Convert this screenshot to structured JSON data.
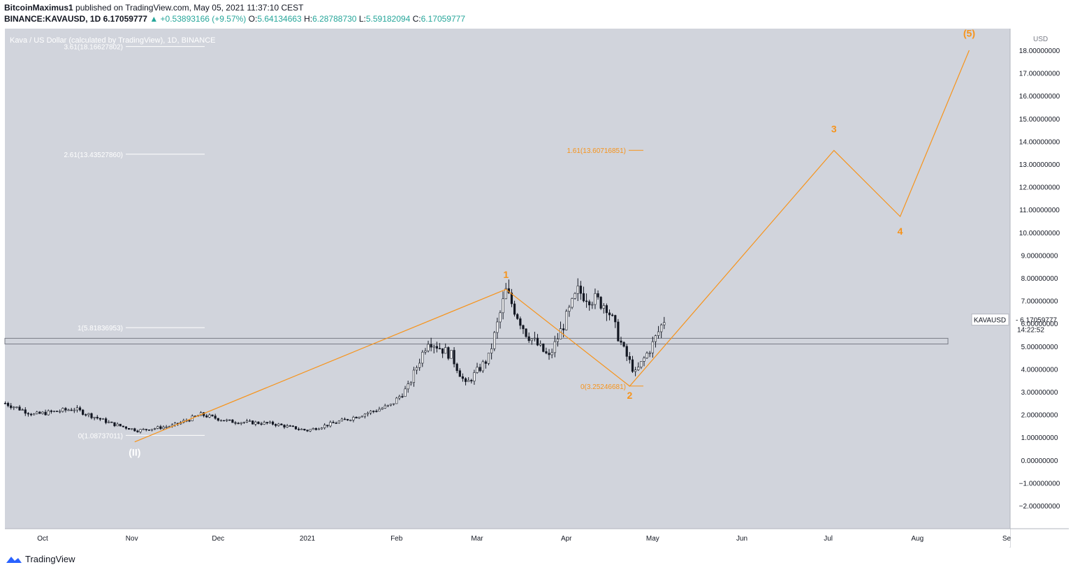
{
  "header": {
    "author": "BitcoinMaximus1",
    "published": "published on TradingView.com, May 05, 2021 11:37:10 CEST",
    "symbol": "BINANCE:KAVAUSD, 1D",
    "last": "6.17059777",
    "change": "▲ +0.53893166 (+9.57%)",
    "open_label": "O:",
    "open": "5.64134663",
    "high_label": "H:",
    "high": "6.28788730",
    "low_label": "L:",
    "low": "5.59182094",
    "close_label": "C:",
    "close": "6.17059777"
  },
  "footer": {
    "brand": "TradingView",
    "icon": "tradingview-logo-icon"
  },
  "colors": {
    "background": "#d1d4dc",
    "candle": "#131722",
    "wave": "#f7931a",
    "fib": "#ffffff"
  },
  "chart_data": {
    "type": "candlestick",
    "title": "Kava / US Dollar (calculated by TradingView), 1D, BINANCE",
    "currency": "USD",
    "ylim": [
      -2.8,
      18.8
    ],
    "y_ticks": [
      "18.00000000",
      "17.00000000",
      "16.00000000",
      "15.00000000",
      "14.00000000",
      "13.00000000",
      "12.00000000",
      "11.00000000",
      "10.00000000",
      "9.00000000",
      "8.00000000",
      "7.00000000",
      "6.00000000",
      "5.00000000",
      "4.00000000",
      "3.00000000",
      "2.00000000",
      "1.00000000",
      "0.00000000",
      "−1.00000000",
      "−2.00000000"
    ],
    "y_tick_values": [
      18,
      17,
      16,
      15,
      14,
      13,
      12,
      11,
      10,
      9,
      8,
      7,
      6,
      5,
      4,
      3,
      2,
      1,
      0,
      -1,
      -2
    ],
    "x_ticks": [
      "Oct",
      "Nov",
      "Dec",
      "2021",
      "Feb",
      "Mar",
      "Apr",
      "May",
      "Jun",
      "Jul",
      "Aug",
      "Se"
    ],
    "x_tick_dates": [
      "2020-10-01",
      "2020-11-01",
      "2020-12-01",
      "2021-01-01",
      "2021-02-01",
      "2021-03-01",
      "2021-04-01",
      "2021-05-01",
      "2021-06-01",
      "2021-07-01",
      "2021-08-01",
      "2021-09-01"
    ],
    "price_anchors": [
      [
        "2020-09-18",
        2.5
      ],
      [
        "2020-09-28",
        2.0
      ],
      [
        "2020-10-12",
        2.25
      ],
      [
        "2020-10-25",
        1.6
      ],
      [
        "2020-11-03",
        1.3
      ],
      [
        "2020-11-15",
        1.5
      ],
      [
        "2020-11-25",
        2.0
      ],
      [
        "2020-12-05",
        1.7
      ],
      [
        "2020-12-20",
        1.6
      ],
      [
        "2021-01-01",
        1.3
      ],
      [
        "2021-01-15",
        1.8
      ],
      [
        "2021-01-30",
        2.4
      ],
      [
        "2021-02-05",
        3.2
      ],
      [
        "2021-02-12",
        5.3
      ],
      [
        "2021-02-20",
        4.6
      ],
      [
        "2021-02-25",
        3.3
      ],
      [
        "2021-03-05",
        4.5
      ],
      [
        "2021-03-11",
        7.4
      ],
      [
        "2021-03-18",
        5.6
      ],
      [
        "2021-03-26",
        4.5
      ],
      [
        "2021-04-05",
        7.4
      ],
      [
        "2021-04-15",
        6.8
      ],
      [
        "2021-04-21",
        4.8
      ],
      [
        "2021-04-25",
        3.8
      ],
      [
        "2021-05-01",
        5.1
      ],
      [
        "2021-05-05",
        6.17
      ]
    ],
    "last_price": {
      "symbol": "KAVAUSD",
      "value": "6.17059777",
      "countdown": "14:22:52"
    },
    "support_zone": [
      5.1,
      5.35
    ],
    "fib_grey": [
      {
        "label": "3.61(18.16627802)",
        "value": 18.16627802
      },
      {
        "label": "2.61(13.43527860)",
        "value": 13.4352786
      },
      {
        "label": "1(5.81836953)",
        "value": 5.81836953
      },
      {
        "label": "0(1.08737011)",
        "value": 1.08737011
      }
    ],
    "fib_orange": [
      {
        "label": "1.61(13.60716851)",
        "value": 13.60716851
      },
      {
        "label": "0(3.25246681)",
        "value": 3.25246681
      }
    ],
    "wave_path": [
      [
        "2020-11-02",
        0.8
      ],
      [
        "2021-03-11",
        7.5
      ],
      [
        "2021-04-23",
        3.25
      ],
      [
        "2021-07-03",
        13.6
      ],
      [
        "2021-07-26",
        10.7
      ],
      [
        "2021-08-19",
        18.0
      ]
    ],
    "wave_labels": [
      {
        "text": "1",
        "date": "2021-03-11",
        "y": 8.0
      },
      {
        "text": "2",
        "date": "2021-04-23",
        "y": 2.7
      },
      {
        "text": "3",
        "date": "2021-07-03",
        "y": 14.4
      },
      {
        "text": "4",
        "date": "2021-07-26",
        "y": 9.9
      },
      {
        "text": "(5)",
        "date": "2021-08-19",
        "y": 18.6
      },
      {
        "text": "(II)",
        "date": "2020-11-02",
        "y": 0.2
      }
    ]
  }
}
